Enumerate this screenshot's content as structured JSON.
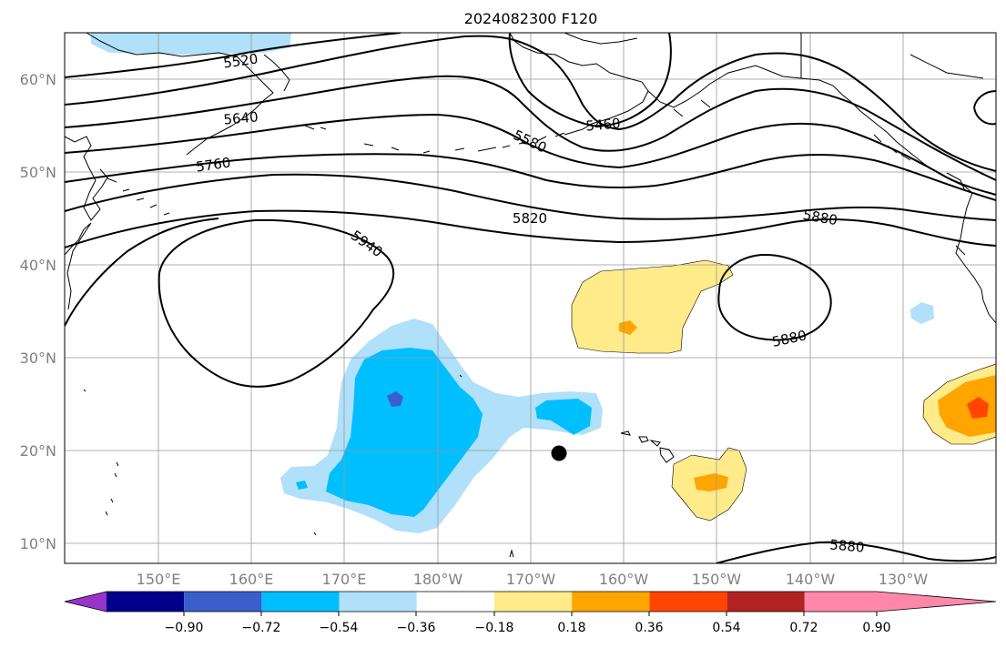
{
  "title": "2024082300 F120",
  "lat_labels": [
    "60°N",
    "50°N",
    "40°N",
    "30°N",
    "20°N",
    "10°N"
  ],
  "lon_labels": [
    "150°E",
    "160°E",
    "170°E",
    "180°W",
    "170°W",
    "160°W",
    "150°W",
    "140°W",
    "130°W"
  ],
  "contour_labels": [
    "5520",
    "5640",
    "5760",
    "5820",
    "5880",
    "5940",
    "5580",
    "5460",
    "5880",
    "5880"
  ],
  "colorbar": {
    "ticks": [
      "−0.90",
      "−0.72",
      "−0.54",
      "−0.36",
      "−0.18",
      "0.18",
      "0.36",
      "0.54",
      "0.72",
      "0.90"
    ],
    "colors": [
      "#9933cc",
      "#00008b",
      "#3a5fcd",
      "#00bfff",
      "#b0e0fa",
      "#ffffff",
      "#ffeb8a",
      "#ffa500",
      "#ff4500",
      "#b22222",
      "#ff88aa"
    ]
  },
  "colors": {
    "grid": "#999999",
    "contour": "#000000",
    "coast": "#000000"
  }
}
